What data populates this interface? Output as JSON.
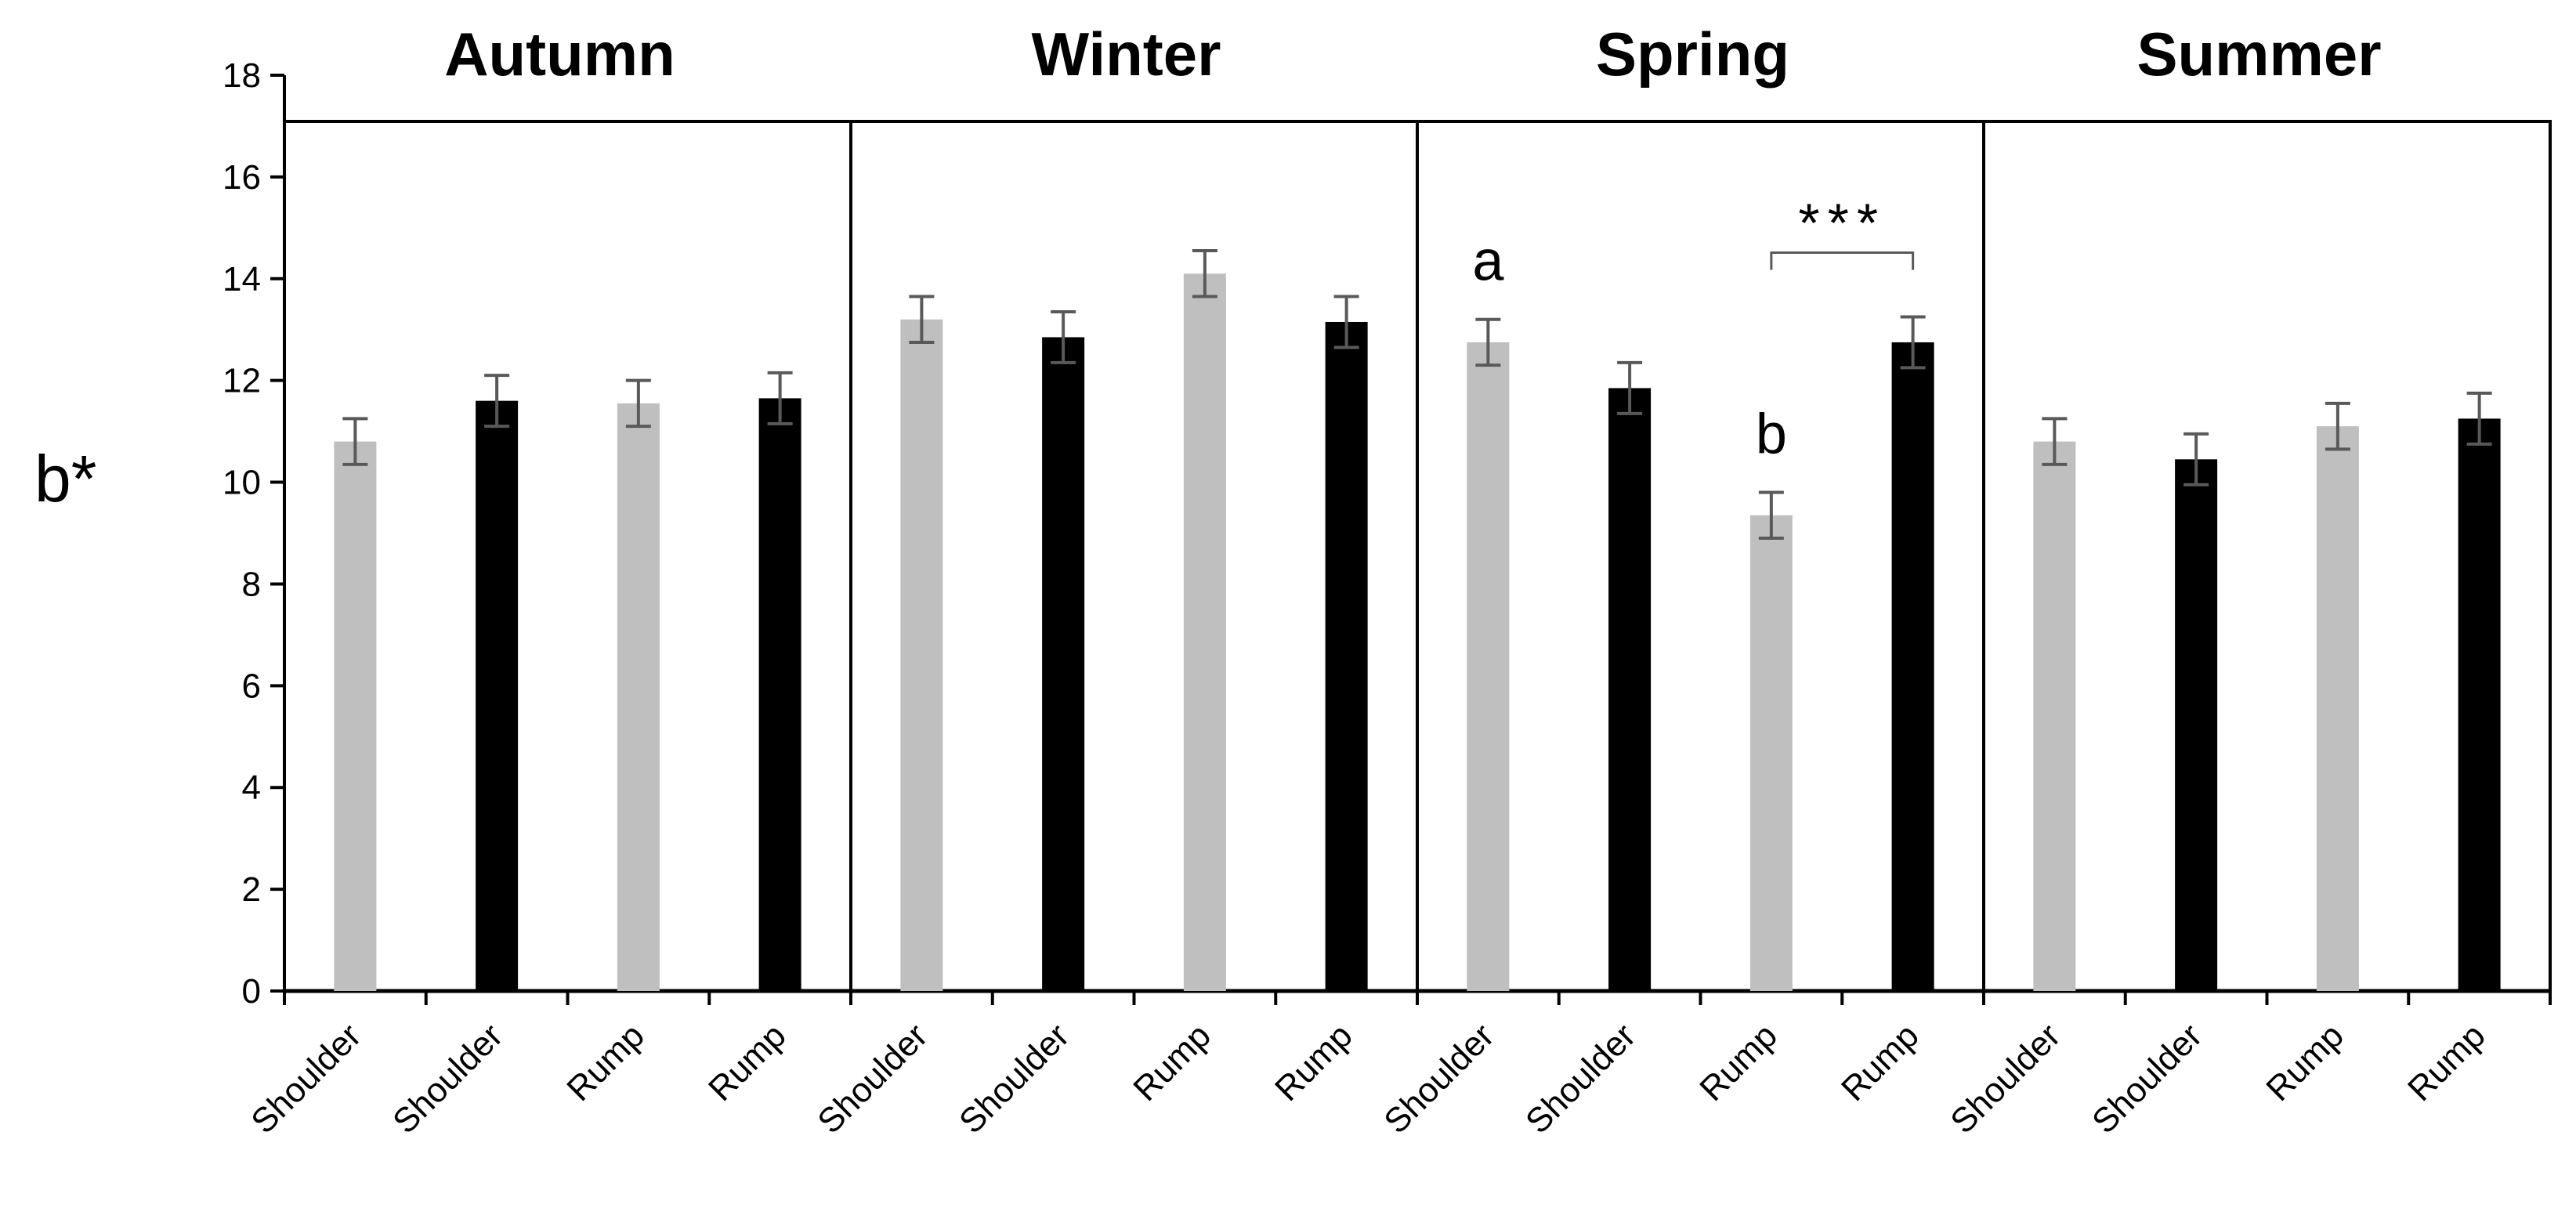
{
  "chart_data": {
    "type": "bar",
    "title": "",
    "xlabel": "",
    "ylabel": "b*",
    "ylim": [
      0,
      18
    ],
    "yticks": [
      "0",
      "2",
      "4",
      "6",
      "8",
      "10",
      "12",
      "14",
      "16",
      "18"
    ],
    "colors": {
      "light": "#bfbfbf",
      "dark": "#000000",
      "error": "#595959"
    },
    "groups": [
      {
        "title": "Autumn",
        "bars": [
          {
            "label": "Shoulder",
            "value": 10.8,
            "err": 0.45,
            "color": "light"
          },
          {
            "label": "Shoulder",
            "value": 11.6,
            "err": 0.5,
            "color": "dark"
          },
          {
            "label": "Rump",
            "value": 11.55,
            "err": 0.45,
            "color": "light"
          },
          {
            "label": "Rump",
            "value": 11.65,
            "err": 0.5,
            "color": "dark"
          }
        ]
      },
      {
        "title": "Winter",
        "bars": [
          {
            "label": "Shoulder",
            "value": 13.2,
            "err": 0.45,
            "color": "light"
          },
          {
            "label": "Shoulder",
            "value": 12.85,
            "err": 0.5,
            "color": "dark"
          },
          {
            "label": "Rump",
            "value": 14.1,
            "err": 0.45,
            "color": "light"
          },
          {
            "label": "Rump",
            "value": 13.15,
            "err": 0.5,
            "color": "dark"
          }
        ]
      },
      {
        "title": "Spring",
        "bars": [
          {
            "label": "Shoulder",
            "value": 12.75,
            "err": 0.45,
            "color": "light"
          },
          {
            "label": "Shoulder",
            "value": 11.85,
            "err": 0.5,
            "color": "dark"
          },
          {
            "label": "Rump",
            "value": 9.35,
            "err": 0.45,
            "color": "light"
          },
          {
            "label": "Rump",
            "value": 12.75,
            "err": 0.5,
            "color": "dark"
          }
        ],
        "annotations": [
          {
            "text": "a",
            "bar": 0
          },
          {
            "text": "b",
            "bar": 2
          }
        ],
        "significance": {
          "text": "***",
          "from_bar": 2,
          "to_bar": 3
        }
      },
      {
        "title": "Summer",
        "bars": [
          {
            "label": "Shoulder",
            "value": 10.8,
            "err": 0.45,
            "color": "light"
          },
          {
            "label": "Shoulder",
            "value": 10.45,
            "err": 0.5,
            "color": "dark"
          },
          {
            "label": "Rump",
            "value": 11.1,
            "err": 0.45,
            "color": "light"
          },
          {
            "label": "Rump",
            "value": 11.25,
            "err": 0.5,
            "color": "dark"
          }
        ]
      }
    ]
  }
}
